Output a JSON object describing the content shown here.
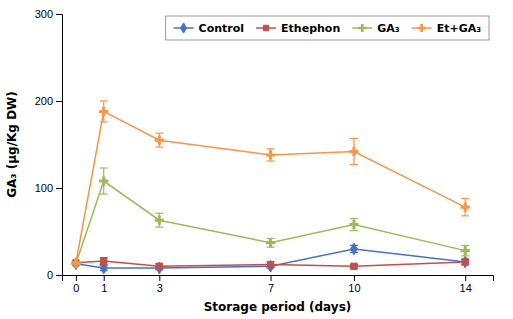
{
  "chart_data": {
    "type": "line",
    "xlabel": "Storage period (days)",
    "ylabel": "GA₃ (μg/Kg DW)",
    "x": [
      0,
      1,
      3,
      7,
      10,
      14
    ],
    "xlim": [
      -0.5,
      15.0
    ],
    "xticks": [
      0,
      1,
      3,
      7,
      10,
      14
    ],
    "ylim": [
      0,
      300
    ],
    "yticks": [
      0,
      100,
      200,
      300
    ],
    "grid": false,
    "legend": "upper right",
    "series": [
      {
        "name": "Control",
        "color": "#4472C4",
        "marker": "diamond",
        "values": [
          13,
          8,
          8,
          10,
          30,
          15
        ],
        "errors": [
          0,
          3,
          2,
          2,
          4,
          3
        ]
      },
      {
        "name": "Ethephon",
        "color": "#C0504D",
        "marker": "square",
        "values": [
          14,
          16,
          10,
          12,
          10,
          15
        ],
        "errors": [
          0,
          4,
          3,
          3,
          2,
          3
        ]
      },
      {
        "name": "GA₃",
        "color": "#9BBB59",
        "marker": "plus",
        "values": [
          13,
          108,
          63,
          37,
          58,
          28
        ],
        "errors": [
          0,
          15,
          8,
          5,
          7,
          6
        ]
      },
      {
        "name": "Et+GA₃",
        "color": "#F79646",
        "marker": "plus",
        "values": [
          14,
          188,
          155,
          138,
          142,
          78
        ],
        "errors": [
          0,
          12,
          8,
          7,
          15,
          10
        ]
      }
    ]
  }
}
